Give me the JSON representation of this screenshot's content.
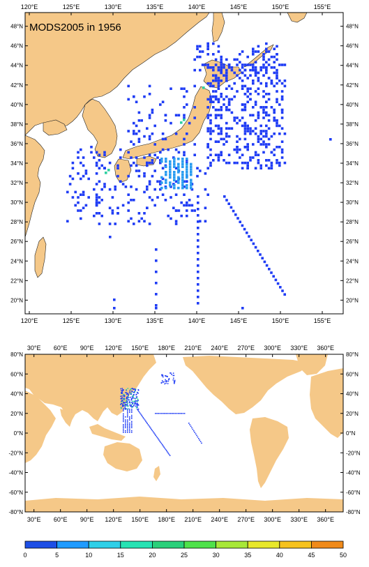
{
  "top_map": {
    "title": "MODS2005 in 1956",
    "lon_ticks": [
      "120°E",
      "125°E",
      "130°E",
      "135°E",
      "140°E",
      "145°E",
      "150°E",
      "155°E"
    ],
    "lat_ticks": [
      "48°N",
      "46°N",
      "44°N",
      "42°N",
      "40°N",
      "38°N",
      "36°N",
      "34°N",
      "32°N",
      "30°N",
      "28°N",
      "26°N",
      "24°N",
      "22°N",
      "20°N"
    ],
    "extent": {
      "lon": [
        119.5,
        157.5
      ],
      "lat": [
        18.6,
        49.4
      ]
    }
  },
  "bottom_map": {
    "lon_ticks": [
      "30°E",
      "60°E",
      "90°E",
      "120°E",
      "150°E",
      "180°E",
      "210°E",
      "240°E",
      "270°E",
      "300°E",
      "330°E",
      "360°E"
    ],
    "lat_ticks": [
      "80°N",
      "60°N",
      "40°N",
      "20°N",
      "0°N",
      "-20°N",
      "-40°N",
      "-60°N",
      "-80°N"
    ],
    "extent": {
      "lon": [
        20,
        380
      ],
      "lat": [
        -80,
        80
      ]
    }
  },
  "colorbar": {
    "labels": [
      "0",
      "5",
      "10",
      "15",
      "20",
      "25",
      "30",
      "35",
      "40",
      "45",
      "50"
    ],
    "colors": [
      "#1e4fe6",
      "#1f9bff",
      "#2ed0e8",
      "#26e3b3",
      "#2ad07a",
      "#4fe24a",
      "#a8e838",
      "#e8e82a",
      "#f6c21e",
      "#f08a1a",
      "#e8501a"
    ]
  },
  "colors": {
    "land": "#f5c888",
    "ocean": "#ffffff",
    "obs_primary": "#1f3cf5",
    "obs_secondary": "#2a9cf0",
    "obs_dense": "#2ed0a0"
  }
}
